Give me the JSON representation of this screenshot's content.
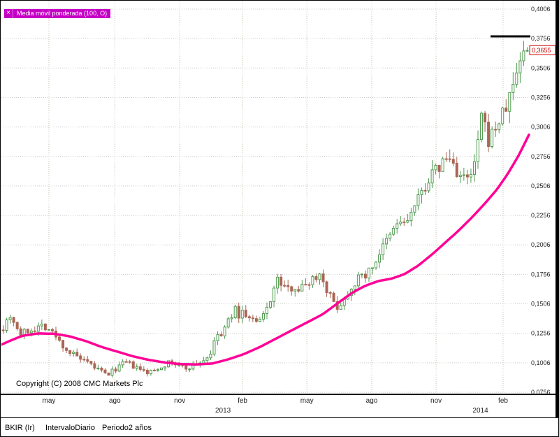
{
  "colors": {
    "ma_line": "#FF0096",
    "up_candle": "#4E9A4E",
    "down_candle": "#AA6655",
    "grid_h": "#CCCCCC",
    "grid_v": "#CFC4B0",
    "axis_text": "#222222",
    "marker_line": "#000000",
    "last_price_color": "#CC0000",
    "chip_bg": "#C500C5"
  },
  "indicator_chip": {
    "close_glyph": "×",
    "label": "Media móvil ponderada (100, O)"
  },
  "copyright": "Copyright (C) 2008 CMC Markets Plc",
  "status_bar": {
    "symbol": "BKIR (Ir)",
    "interval_label": "Intervalo",
    "interval_value": "Diario",
    "period_label": "Periodo",
    "period_value": "2 años"
  },
  "chart_data": {
    "type": "candlestick",
    "title": "BKIR (Ir) — Diario — 2 años — Media móvil ponderada (100, O)",
    "y_axis": {
      "min": 0.0756,
      "max": 0.4006,
      "step": 0.025,
      "labels": [
        "0,4006",
        "0,3756",
        "0,3506",
        "0,3256",
        "0,3006",
        "0,2756",
        "0,2506",
        "0,2256",
        "0,2006",
        "0,1756",
        "0,1506",
        "0,1256",
        "0,1006",
        "0,0756"
      ]
    },
    "x_axis": {
      "month_ticks": [
        {
          "label": "may",
          "t": 0.09
        },
        {
          "label": "ago",
          "t": 0.215
        },
        {
          "label": "nov",
          "t": 0.338
        },
        {
          "label": "feb",
          "t": 0.457
        },
        {
          "label": "may",
          "t": 0.579
        },
        {
          "label": "ago",
          "t": 0.702
        },
        {
          "label": "nov",
          "t": 0.824
        },
        {
          "label": "feb",
          "t": 0.951
        }
      ],
      "year_ticks": [
        {
          "label": "2013",
          "t": 0.42
        },
        {
          "label": "2014",
          "t": 0.908
        }
      ]
    },
    "last_price": {
      "value": 0.3655,
      "label": "0,3655"
    },
    "marker_line_price": 0.3775,
    "candles": {
      "count": 150,
      "noise_seed": 7,
      "close_path": [
        [
          0,
          0.131
        ],
        [
          0.008,
          0.138
        ],
        [
          0.016,
          0.142
        ],
        [
          0.024,
          0.131
        ],
        [
          0.034,
          0.125
        ],
        [
          0.048,
          0.128
        ],
        [
          0.062,
          0.13
        ],
        [
          0.075,
          0.133
        ],
        [
          0.088,
          0.129
        ],
        [
          0.1,
          0.123
        ],
        [
          0.112,
          0.116
        ],
        [
          0.125,
          0.11
        ],
        [
          0.14,
          0.106
        ],
        [
          0.155,
          0.101
        ],
        [
          0.17,
          0.098
        ],
        [
          0.185,
          0.094
        ],
        [
          0.198,
          0.09
        ],
        [
          0.21,
          0.094
        ],
        [
          0.222,
          0.098
        ],
        [
          0.235,
          0.101
        ],
        [
          0.25,
          0.097
        ],
        [
          0.263,
          0.094
        ],
        [
          0.278,
          0.092
        ],
        [
          0.292,
          0.095
        ],
        [
          0.307,
          0.099
        ],
        [
          0.322,
          0.101
        ],
        [
          0.335,
          0.098
        ],
        [
          0.35,
          0.096
        ],
        [
          0.365,
          0.099
        ],
        [
          0.38,
          0.102
        ],
        [
          0.392,
          0.106
        ],
        [
          0.4,
          0.112
        ],
        [
          0.408,
          0.126
        ],
        [
          0.414,
          0.121
        ],
        [
          0.422,
          0.129
        ],
        [
          0.432,
          0.138
        ],
        [
          0.442,
          0.146
        ],
        [
          0.45,
          0.141
        ],
        [
          0.458,
          0.144
        ],
        [
          0.468,
          0.139
        ],
        [
          0.478,
          0.136
        ],
        [
          0.488,
          0.134
        ],
        [
          0.498,
          0.142
        ],
        [
          0.508,
          0.152
        ],
        [
          0.516,
          0.163
        ],
        [
          0.524,
          0.171
        ],
        [
          0.534,
          0.166
        ],
        [
          0.544,
          0.162
        ],
        [
          0.554,
          0.167
        ],
        [
          0.564,
          0.163
        ],
        [
          0.574,
          0.166
        ],
        [
          0.584,
          0.17
        ],
        [
          0.596,
          0.174
        ],
        [
          0.606,
          0.176
        ],
        [
          0.616,
          0.165
        ],
        [
          0.626,
          0.155
        ],
        [
          0.636,
          0.148
        ],
        [
          0.648,
          0.152
        ],
        [
          0.66,
          0.162
        ],
        [
          0.672,
          0.17
        ],
        [
          0.684,
          0.174
        ],
        [
          0.696,
          0.177
        ],
        [
          0.706,
          0.183
        ],
        [
          0.716,
          0.192
        ],
        [
          0.726,
          0.199
        ],
        [
          0.736,
          0.206
        ],
        [
          0.746,
          0.214
        ],
        [
          0.756,
          0.222
        ],
        [
          0.766,
          0.217
        ],
        [
          0.776,
          0.226
        ],
        [
          0.786,
          0.233
        ],
        [
          0.796,
          0.242
        ],
        [
          0.806,
          0.252
        ],
        [
          0.816,
          0.259
        ],
        [
          0.826,
          0.263
        ],
        [
          0.836,
          0.269
        ],
        [
          0.846,
          0.274
        ],
        [
          0.856,
          0.272
        ],
        [
          0.866,
          0.263
        ],
        [
          0.876,
          0.257
        ],
        [
          0.886,
          0.255
        ],
        [
          0.896,
          0.261
        ],
        [
          0.906,
          0.285
        ],
        [
          0.912,
          0.312
        ],
        [
          0.918,
          0.3
        ],
        [
          0.926,
          0.29
        ],
        [
          0.934,
          0.295
        ],
        [
          0.942,
          0.303
        ],
        [
          0.95,
          0.308
        ],
        [
          0.958,
          0.315
        ],
        [
          0.966,
          0.326
        ],
        [
          0.974,
          0.338
        ],
        [
          0.982,
          0.352
        ],
        [
          0.99,
          0.364
        ],
        [
          1,
          0.3655
        ]
      ]
    },
    "ma_path": [
      [
        0,
        0.116
      ],
      [
        0.02,
        0.12
      ],
      [
        0.04,
        0.1235
      ],
      [
        0.07,
        0.1255
      ],
      [
        0.1,
        0.1252
      ],
      [
        0.13,
        0.123
      ],
      [
        0.16,
        0.119
      ],
      [
        0.19,
        0.114
      ],
      [
        0.22,
        0.11
      ],
      [
        0.25,
        0.106
      ],
      [
        0.28,
        0.103
      ],
      [
        0.31,
        0.1008
      ],
      [
        0.34,
        0.0995
      ],
      [
        0.37,
        0.0992
      ],
      [
        0.4,
        0.1
      ],
      [
        0.43,
        0.1035
      ],
      [
        0.46,
        0.108
      ],
      [
        0.49,
        0.114
      ],
      [
        0.52,
        0.121
      ],
      [
        0.55,
        0.128
      ],
      [
        0.58,
        0.135
      ],
      [
        0.61,
        0.142
      ],
      [
        0.64,
        0.152
      ],
      [
        0.665,
        0.16
      ],
      [
        0.69,
        0.166
      ],
      [
        0.715,
        0.17
      ],
      [
        0.74,
        0.172
      ],
      [
        0.765,
        0.176
      ],
      [
        0.79,
        0.183
      ],
      [
        0.815,
        0.192
      ],
      [
        0.84,
        0.202
      ],
      [
        0.865,
        0.212
      ],
      [
        0.89,
        0.223
      ],
      [
        0.915,
        0.235
      ],
      [
        0.94,
        0.248
      ],
      [
        0.96,
        0.261
      ],
      [
        0.98,
        0.276
      ],
      [
        1,
        0.294
      ]
    ]
  }
}
